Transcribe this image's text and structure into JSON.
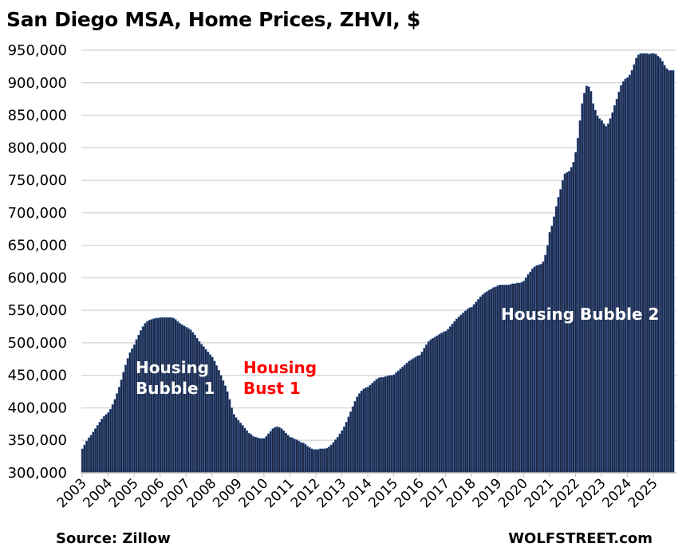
{
  "chart_data": {
    "type": "bar",
    "title": "San Diego MSA, Home Prices, ZHVI, $",
    "xlabel": "",
    "ylabel": "",
    "frequency": "monthly",
    "start": "2003-01",
    "ylim": [
      300000,
      950000
    ],
    "yticks": [
      "300,000",
      "350,000",
      "400,000",
      "450,000",
      "500,000",
      "550,000",
      "600,000",
      "650,000",
      "700,000",
      "750,000",
      "800,000",
      "850,000",
      "900,000",
      "950,000"
    ],
    "xticks": [
      "2003",
      "2004",
      "2005",
      "2006",
      "2007",
      "2008",
      "2009",
      "2010",
      "2011",
      "2012",
      "2013",
      "2014",
      "2015",
      "2016",
      "2017",
      "2018",
      "2019",
      "2020",
      "2021",
      "2022",
      "2023",
      "2024",
      "2025"
    ],
    "grid": true,
    "values_thousands": [
      337,
      343,
      349,
      354,
      358,
      363,
      368,
      373,
      378,
      383,
      387,
      390,
      393,
      398,
      405,
      413,
      422,
      432,
      443,
      455,
      466,
      476,
      485,
      491,
      497,
      505,
      512,
      519,
      525,
      530,
      533,
      535,
      536,
      537,
      538,
      538,
      539,
      539,
      539,
      539,
      539,
      539,
      538,
      536,
      533,
      530,
      528,
      526,
      524,
      522,
      520,
      516,
      512,
      507,
      502,
      498,
      494,
      490,
      486,
      482,
      478,
      472,
      465,
      458,
      450,
      442,
      434,
      425,
      413,
      400,
      390,
      385,
      381,
      377,
      373,
      369,
      365,
      361,
      359,
      356,
      355,
      354,
      353,
      353,
      353,
      356,
      360,
      364,
      368,
      370,
      371,
      370,
      368,
      365,
      361,
      358,
      355,
      354,
      352,
      351,
      349,
      347,
      346,
      344,
      341,
      339,
      337,
      336,
      336,
      336,
      337,
      337,
      337,
      338,
      340,
      343,
      347,
      351,
      355,
      360,
      365,
      371,
      378,
      386,
      394,
      402,
      410,
      417,
      422,
      426,
      429,
      431,
      432,
      435,
      438,
      441,
      444,
      446,
      447,
      447,
      448,
      449,
      450,
      450,
      451,
      454,
      457,
      460,
      463,
      466,
      469,
      472,
      474,
      476,
      478,
      480,
      481,
      486,
      492,
      497,
      502,
      505,
      507,
      509,
      511,
      513,
      515,
      517,
      518,
      521,
      525,
      529,
      533,
      537,
      540,
      543,
      546,
      549,
      552,
      554,
      555,
      559,
      563,
      567,
      571,
      574,
      577,
      579,
      581,
      583,
      585,
      586,
      588,
      589,
      589,
      589,
      589,
      589,
      590,
      591,
      591,
      592,
      592,
      593,
      595,
      600,
      605,
      609,
      614,
      617,
      619,
      620,
      621,
      625,
      635,
      650,
      670,
      680,
      694,
      710,
      724,
      736,
      750,
      760,
      762,
      764,
      770,
      778,
      793,
      815,
      842,
      868,
      884,
      895,
      894,
      887,
      868,
      858,
      849,
      845,
      842,
      837,
      833,
      837,
      845,
      854,
      865,
      875,
      886,
      896,
      902,
      906,
      908,
      912,
      919,
      928,
      938,
      943,
      945,
      945,
      945,
      945,
      944,
      945,
      945,
      944,
      941,
      938,
      933,
      927,
      922,
      919,
      919,
      919
    ],
    "annotations": [
      {
        "text_line1": "Housing",
        "text_line2": "Bubble 1",
        "color": "#ffffff"
      },
      {
        "text_line1": "Housing",
        "text_line2": "Bust 1",
        "color": "#ff0000"
      },
      {
        "text_line1": "Housing Bubble 2",
        "color": "#ffffff"
      }
    ],
    "bar_color": "#1f2a44",
    "bar_edge_color": "#4a78c8"
  },
  "footer": {
    "source": "Source: Zillow",
    "brand": "WOLFSTREET.com"
  }
}
